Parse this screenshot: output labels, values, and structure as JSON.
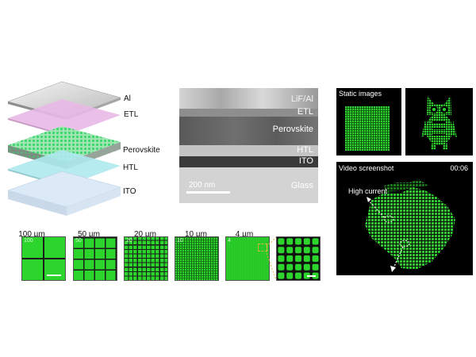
{
  "stack": {
    "layers": [
      "Al",
      "ETL",
      "Perovskite",
      "HTL",
      "ITO"
    ]
  },
  "tem": {
    "layers": [
      "LiF/Al",
      "ETL",
      "Perovskite",
      "HTL",
      "ITO",
      "Glass"
    ],
    "scale_bar": "200 nm"
  },
  "pixels": {
    "sizes": [
      "100 µm",
      "50 µm",
      "20 µm",
      "10 µm",
      "4 µm"
    ],
    "inset_numbers": [
      "100",
      "50",
      "20",
      "10",
      "4"
    ]
  },
  "static_panel": {
    "title": "Static images"
  },
  "video_panel": {
    "title": "Video screenshot",
    "timestamp": "00:06",
    "annotation": "High current"
  },
  "colors": {
    "pixel_green": "#22c922",
    "bright_green": "#3ef53e",
    "etl_pink": "#e9b9e6",
    "htl_cyan": "#aee9ee",
    "ito_blue": "#cfe4f7"
  }
}
